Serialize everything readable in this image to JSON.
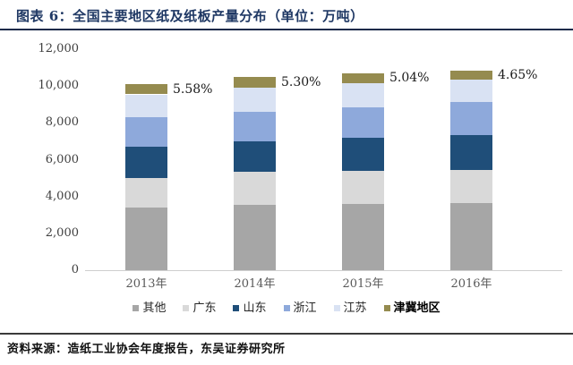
{
  "header": {
    "title": "图表 6：全国主要地区纸及纸板产量分布（单位：万吨）"
  },
  "footer": {
    "source": "资料来源：造纸工业协会年度报告，东吴证券研究所"
  },
  "chart_data": {
    "type": "bar",
    "stacked": true,
    "title": "全国主要地区纸及纸板产量分布",
    "unit": "万吨",
    "categories": [
      "2013年",
      "2014年",
      "2015年",
      "2016年"
    ],
    "series": [
      {
        "name": "其他",
        "color": "#A6A6A6",
        "values": [
          3380,
          3540,
          3590,
          3620
        ]
      },
      {
        "name": "广东",
        "color": "#D9D9D9",
        "values": [
          1630,
          1780,
          1820,
          1835
        ]
      },
      {
        "name": "山东",
        "color": "#1F4E79",
        "values": [
          1690,
          1700,
          1770,
          1895
        ]
      },
      {
        "name": "浙江",
        "color": "#8EA9DB",
        "values": [
          1630,
          1560,
          1660,
          1770
        ]
      },
      {
        "name": "江苏",
        "color": "#D9E2F3",
        "values": [
          1216,
          1335,
          1330,
          1230
        ]
      },
      {
        "name": "津冀地区",
        "color": "#958B4F",
        "values": [
          564,
          555,
          540,
          505
        ],
        "bold_legend": true
      }
    ],
    "totals": [
      10110,
      10470,
      10710,
      10855
    ],
    "bar_labels": [
      "5.58%",
      "5.30%",
      "5.04%",
      "4.65%"
    ],
    "y_axis": {
      "min": 0,
      "max": 12000,
      "step": 2000,
      "tick_labels": [
        "0",
        "2,000",
        "4,000",
        "6,000",
        "8,000",
        "10,000",
        "12,000"
      ]
    },
    "legend_position": "bottom",
    "grid": false
  }
}
